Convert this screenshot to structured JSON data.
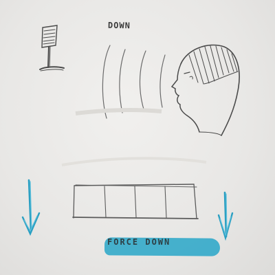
{
  "labels": {
    "top_caption": "DOWN",
    "bottom_caption": "FORCE DOWN"
  },
  "colors": {
    "paper": "#e9e8e6",
    "pencil": "#5a5a5a",
    "highlighter": "#28a6c8",
    "arrow_ink": "#2a9fc2"
  },
  "icons": {
    "left_arrow": "down-arrow-icon",
    "right_arrow": "down-arrow-icon",
    "top_left": "music-stand-icon"
  }
}
